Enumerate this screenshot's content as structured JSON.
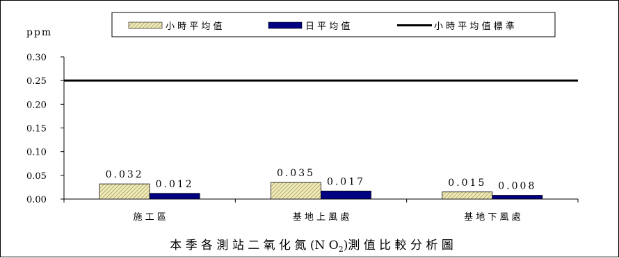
{
  "chart_data": {
    "type": "bar",
    "title": "本季各測站二氧化氮(NO₂)測值比較分析圖",
    "title_parts": [
      "本 季 各 測 站 二 氧 化 氮 (N O",
      "2",
      ")測 值 比 較 分 析 圖"
    ],
    "ylabel": "ppm",
    "ylim": [
      0,
      0.3
    ],
    "y_ticks": [
      "0.00",
      "0.05",
      "0.10",
      "0.15",
      "0.20",
      "0.25",
      "0.30"
    ],
    "categories": [
      "施工區",
      "基地上風處",
      "基地下風處"
    ],
    "category_labels": [
      "施 工 區",
      "基 地 上 風 處",
      "基 地 下 風 處"
    ],
    "series": [
      {
        "name": "小時平均值",
        "legend_label": "小 時 平 均 值",
        "values": [
          0.032,
          0.035,
          0.015
        ],
        "data_labels": [
          "0.032",
          "0.035",
          "0.015"
        ],
        "fill": "#f0eab4",
        "hatch": "#8a8560",
        "pattern": "diagonal-hatch"
      },
      {
        "name": "日平均值",
        "legend_label": "日 平 均 值",
        "values": [
          0.012,
          0.017,
          0.008
        ],
        "data_labels": [
          "0.012",
          "0.017",
          "0.008"
        ],
        "fill": "#000080"
      }
    ],
    "reference_line": {
      "name": "小時平均值標準",
      "legend_label": "小 時 平 均 值 標 準",
      "value": 0.25,
      "color": "#000000"
    },
    "grid": false,
    "legend_position": "top"
  }
}
